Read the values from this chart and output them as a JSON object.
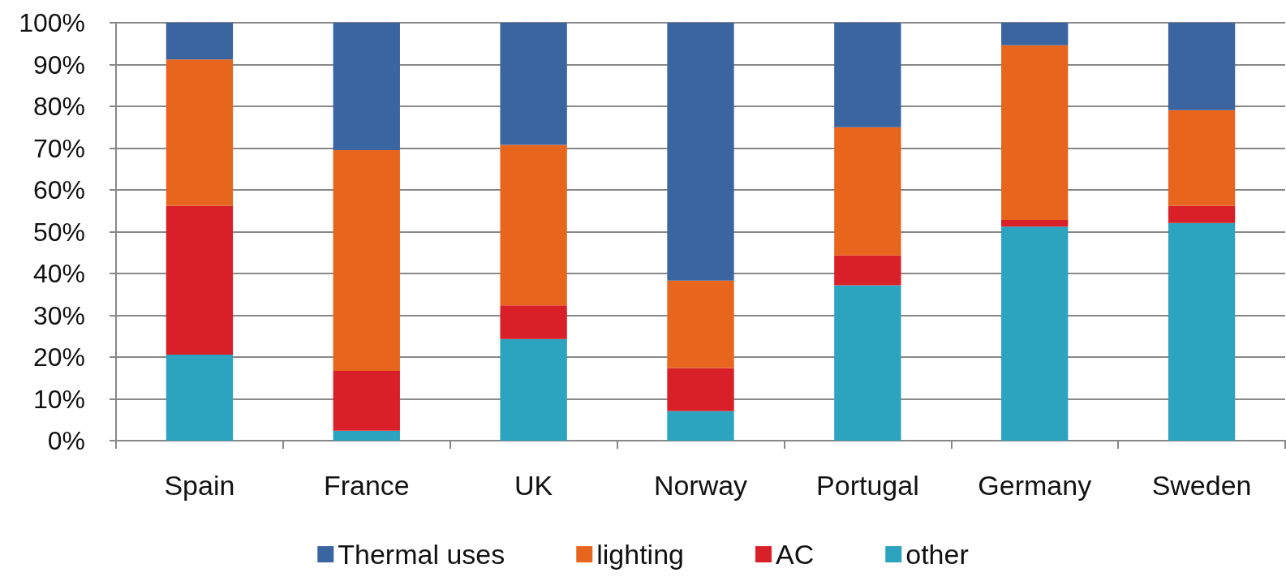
{
  "chart_data": {
    "type": "bar",
    "stacked": true,
    "categories": [
      "Spain",
      "France",
      "UK",
      "Norway",
      "Portugal",
      "Germany",
      "Sweden"
    ],
    "series": [
      {
        "name": "other",
        "color": "#2ca3bf",
        "values": [
          20.6,
          2.4,
          24.3,
          7.1,
          37.2,
          51.2,
          52.1
        ]
      },
      {
        "name": "AC",
        "color": "#d91f28",
        "values": [
          35.6,
          14.3,
          8.1,
          10.3,
          7.1,
          1.6,
          4.1
        ]
      },
      {
        "name": "lighting",
        "color": "#e8651e",
        "values": [
          35.0,
          52.8,
          38.4,
          20.9,
          30.7,
          41.8,
          22.9
        ]
      },
      {
        "name": "Thermal uses",
        "color": "#3a65a0",
        "values": [
          8.8,
          30.5,
          29.2,
          61.7,
          25.0,
          5.4,
          20.9
        ]
      }
    ],
    "ylim": [
      0,
      100
    ],
    "yticks": [
      {
        "value": 0,
        "label": "0%"
      },
      {
        "value": 10,
        "label": "10%"
      },
      {
        "value": 20,
        "label": "20%"
      },
      {
        "value": 30,
        "label": "30%"
      },
      {
        "value": 40,
        "label": "40%"
      },
      {
        "value": 50,
        "label": "50%"
      },
      {
        "value": 60,
        "label": "60%"
      },
      {
        "value": 70,
        "label": "70%"
      },
      {
        "value": 80,
        "label": "80%"
      },
      {
        "value": 90,
        "label": "90%"
      },
      {
        "value": 100,
        "label": "100%"
      }
    ],
    "grid": "y",
    "legend": "bottom"
  }
}
